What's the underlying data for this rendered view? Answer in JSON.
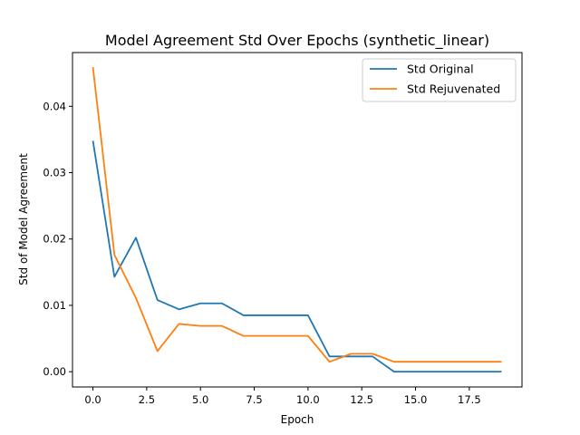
{
  "chart_data": {
    "type": "line",
    "title": "Model Agreement Std Over Epochs (synthetic_linear)",
    "xlabel": "Epoch",
    "ylabel": "Std of Model Agreement",
    "xlim": [
      -0.95,
      19.95
    ],
    "ylim": [
      -0.0023,
      0.0481
    ],
    "xticks": [
      0.0,
      2.5,
      5.0,
      7.5,
      10.0,
      12.5,
      15.0,
      17.5
    ],
    "xtick_labels": [
      "0.0",
      "2.5",
      "5.0",
      "7.5",
      "10.0",
      "12.5",
      "15.0",
      "17.5"
    ],
    "yticks": [
      0.0,
      0.01,
      0.02,
      0.03,
      0.04
    ],
    "ytick_labels": [
      "0.00",
      "0.01",
      "0.02",
      "0.03",
      "0.04"
    ],
    "grid": false,
    "legend_position": "top-right",
    "x": [
      0,
      1,
      2,
      3,
      4,
      5,
      6,
      7,
      8,
      9,
      10,
      11,
      12,
      13,
      14,
      15,
      16,
      17,
      18,
      19
    ],
    "series": [
      {
        "name": "Std Original",
        "color": "#1f77b4",
        "values": [
          0.0348,
          0.0143,
          0.0202,
          0.0108,
          0.0094,
          0.0103,
          0.0103,
          0.0085,
          0.0085,
          0.0085,
          0.0085,
          0.0023,
          0.0023,
          0.0023,
          0.0,
          0.0,
          0.0,
          0.0,
          0.0,
          0.0
        ]
      },
      {
        "name": "Std Rejuvenated",
        "color": "#ff7f0e",
        "values": [
          0.0459,
          0.0176,
          0.0111,
          0.0031,
          0.0072,
          0.0069,
          0.0069,
          0.0054,
          0.0054,
          0.0054,
          0.0054,
          0.0015,
          0.0027,
          0.0027,
          0.0015,
          0.0015,
          0.0015,
          0.0015,
          0.0015,
          0.0015
        ]
      }
    ]
  }
}
